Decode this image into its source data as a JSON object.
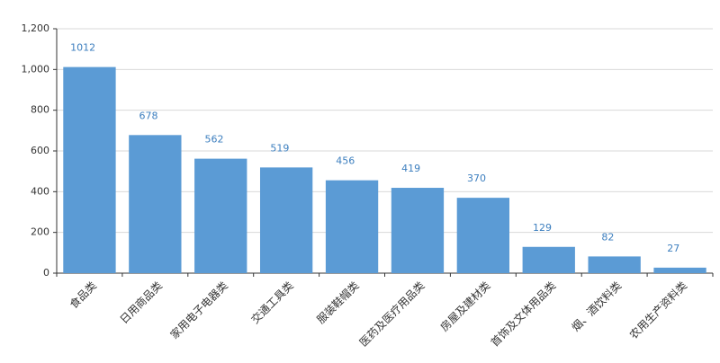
{
  "chart_data": {
    "type": "bar",
    "categories": [
      "食品类",
      "日用商品类",
      "家用电子电器类",
      "交通工具类",
      "服装鞋帽类",
      "医药及医疗用品类",
      "房屋及建材类",
      "首饰及文体用品类",
      "烟、酒饮料类",
      "农用生产资料类"
    ],
    "values": [
      1012,
      678,
      562,
      519,
      456,
      419,
      370,
      129,
      82,
      27
    ],
    "color": "#5b9bd5",
    "ylim": [
      0,
      1200
    ],
    "yticks": [
      0,
      200,
      400,
      600,
      800,
      {
        "value": 1000,
        "label": "1,000"
      },
      {
        "value": 1200,
        "label": "1,200"
      }
    ],
    "grid": true
  }
}
